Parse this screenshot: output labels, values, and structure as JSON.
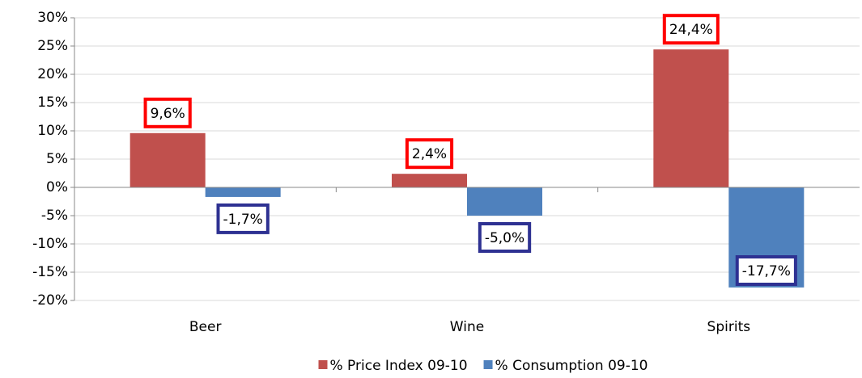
{
  "chart_data": {
    "type": "bar",
    "categories": [
      "Beer",
      "Wine",
      "Spirits"
    ],
    "series": [
      {
        "name": "% Price Index 09-10",
        "color": "#c0504d",
        "values": [
          9.6,
          2.4,
          24.4
        ],
        "value_labels": [
          "9,6%",
          "2,4%",
          "24,4%"
        ]
      },
      {
        "name": "% Consumption 09-10",
        "color": "#4f81bd",
        "values": [
          -1.7,
          -5.0,
          -17.7
        ],
        "value_labels": [
          "-1,7%",
          "-5,0%",
          "-17,7%"
        ]
      }
    ],
    "ylim": [
      -20,
      30
    ],
    "yticks": [
      {
        "value": -20,
        "label": "-20%"
      },
      {
        "value": -15,
        "label": "-15%"
      },
      {
        "value": -10,
        "label": "-10%"
      },
      {
        "value": -5,
        "label": "-5%"
      },
      {
        "value": 0,
        "label": "0%"
      },
      {
        "value": 5,
        "label": "5%"
      },
      {
        "value": 10,
        "label": "10%"
      },
      {
        "value": 15,
        "label": "15%"
      },
      {
        "value": 20,
        "label": "20%"
      },
      {
        "value": 25,
        "label": "25%"
      },
      {
        "value": 30,
        "label": "30%"
      }
    ],
    "grid": true,
    "legend": "bottom"
  }
}
